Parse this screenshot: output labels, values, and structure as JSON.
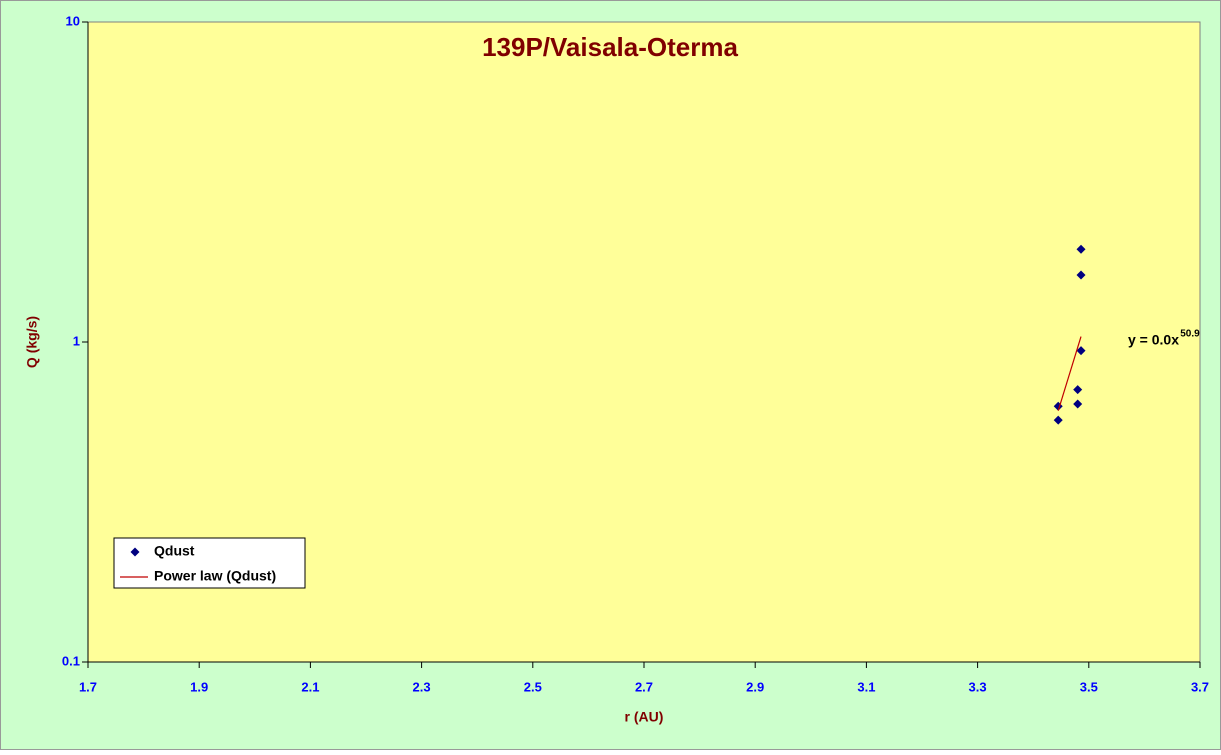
{
  "chart_data": {
    "type": "scatter",
    "title": "139P/Vaisala-Oterma",
    "x_label": "r (AU)",
    "y_label": "Q (kg/s)",
    "log_y": true,
    "xlim": [
      1.7,
      3.7
    ],
    "ylim": [
      0.1,
      10
    ],
    "xticks": [
      1.7,
      1.9,
      2.1,
      2.3,
      2.5,
      2.7,
      2.9,
      3.1,
      3.3,
      3.5,
      3.7
    ],
    "yticks": [
      0.1,
      1,
      10
    ],
    "series": [
      {
        "name": "Qdust",
        "color": "#000080",
        "marker": "diamond",
        "x": [
          3.486,
          3.486,
          3.486,
          3.48,
          3.48,
          3.445,
          3.445
        ],
        "values": [
          1.95,
          1.62,
          0.94,
          0.71,
          0.64,
          0.63,
          0.57
        ]
      },
      {
        "name": "Power law (Qdust)",
        "color": "#c00000",
        "marker": "line",
        "x": [
          3.445,
          3.486
        ],
        "values": [
          0.61,
          1.04
        ]
      }
    ],
    "annotation": [
      "y = 0.0x",
      "50.9"
    ],
    "legend": "lower left"
  }
}
